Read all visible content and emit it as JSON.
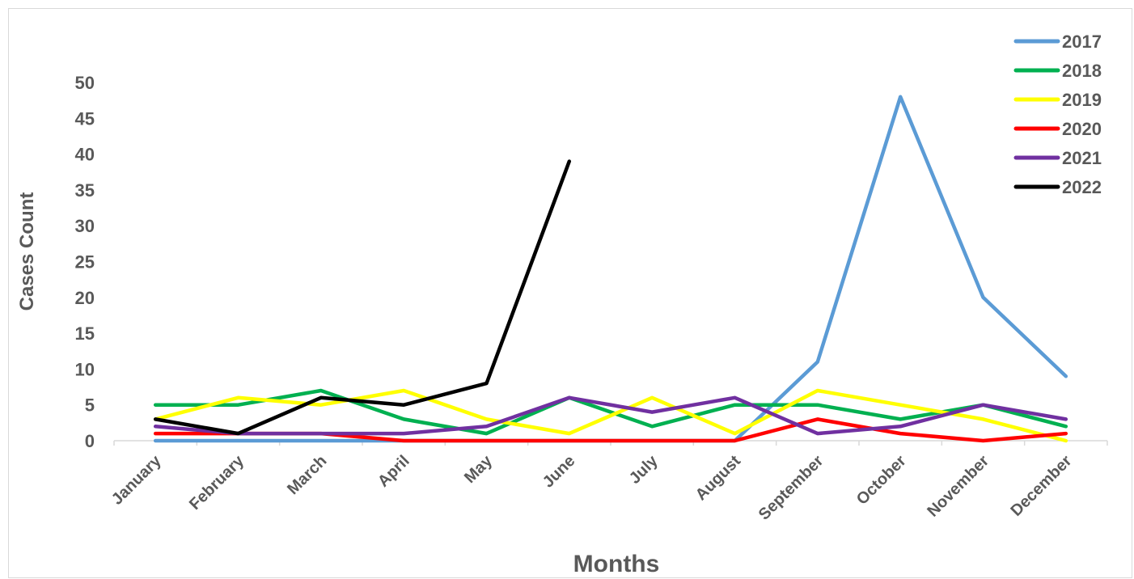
{
  "chart_data": {
    "type": "line",
    "title": "",
    "xlabel": "Months",
    "ylabel": "Cases Count",
    "categories": [
      "January",
      "February",
      "March",
      "April",
      "May",
      "June",
      "July",
      "August",
      "September",
      "October",
      "November",
      "December"
    ],
    "ylim": [
      0,
      50
    ],
    "yticks": [
      "0",
      "5",
      "10",
      "15",
      "20",
      "25",
      "30",
      "35",
      "40",
      "45",
      "50"
    ],
    "grid": false,
    "legend_position": "top-right",
    "series": [
      {
        "name": "2017",
        "color": "#5b9bd5",
        "values": [
          0,
          0,
          0,
          0,
          0,
          0,
          0,
          0,
          11,
          48,
          20,
          9
        ]
      },
      {
        "name": "2018",
        "color": "#00b050",
        "values": [
          5,
          5,
          7,
          3,
          1,
          6,
          2,
          5,
          5,
          3,
          5,
          2
        ]
      },
      {
        "name": "2019",
        "color": "#ffff00",
        "values": [
          3,
          6,
          5,
          7,
          3,
          1,
          6,
          1,
          7,
          5,
          3,
          0
        ]
      },
      {
        "name": "2020",
        "color": "#ff0000",
        "values": [
          1,
          1,
          1,
          0,
          0,
          0,
          0,
          0,
          3,
          1,
          0,
          1
        ]
      },
      {
        "name": "2021",
        "color": "#7030a0",
        "values": [
          2,
          1,
          1,
          1,
          2,
          6,
          4,
          6,
          1,
          2,
          5,
          3
        ]
      },
      {
        "name": "2022",
        "color": "#000000",
        "values": [
          3,
          1,
          6,
          5,
          8,
          39,
          null,
          null,
          null,
          null,
          null,
          null
        ]
      }
    ]
  }
}
